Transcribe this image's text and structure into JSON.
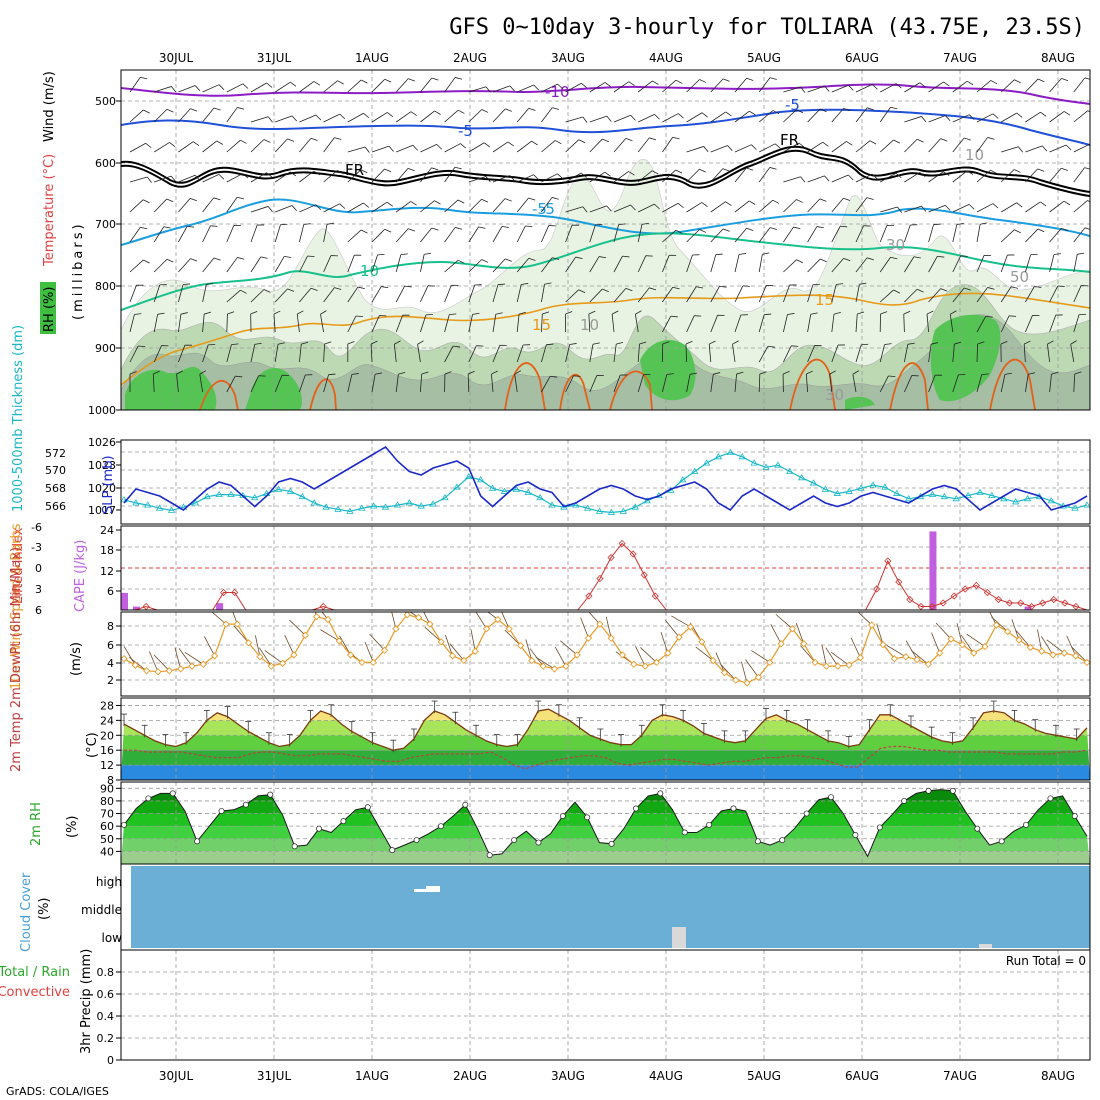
{
  "title": "GFS 0~10day 3-hourly for TOLIARA (43.75E, 23.5S)",
  "credit": "GrADS: COLA/IGES",
  "dates": [
    "30JUL",
    "31JUL",
    "1AUG",
    "2AUG",
    "3AUG",
    "4AUG",
    "5AUG",
    "6AUG",
    "7AUG",
    "8AUG"
  ],
  "run_total": "Run Total = 0",
  "colors": {
    "tempPurple": "#8c1cc4",
    "tempBlue": "#2050d8",
    "tempLightBlue": "#1a9ee0",
    "tempTeal": "#18c08c",
    "tempOrange": "#e69a18",
    "tempOrangeRed": "#e5601a",
    "freezing": "#000000",
    "rhLight": "#e8f4e4",
    "rhMid": "#b8d8b0",
    "rhDark": "#9bb89a",
    "rhGreen": "#50c850",
    "slp": "#1c2ac8",
    "thickness": "#18b8c8",
    "cape": "#c060e0",
    "li": "#d03030",
    "wind": "#e89a28",
    "cloud": "#6baed6",
    "dewpt": "#c04040"
  },
  "panels": {
    "upper": {
      "ylabel_parts": [
        "RH (%)",
        "Temperature (°C)",
        "Wind (m/s)",
        "(millibars)"
      ],
      "yticks": [
        "500",
        "600",
        "700",
        "800",
        "900",
        "1000"
      ],
      "contour_labels": [
        "-10",
        "-5",
        "-5",
        "FR",
        "FR",
        "-5",
        "-5",
        "10",
        "15",
        "15",
        "10",
        "30",
        "50",
        "30",
        "10"
      ]
    },
    "slp": {
      "left_label": "1000-500mb Thickness (dm)",
      "right_label": "SLP (mb)",
      "left_ticks": [
        "572",
        "570",
        "568",
        "566"
      ],
      "right_ticks": [
        "1026",
        "1023",
        "1020",
        "1017"
      ]
    },
    "cape": {
      "left_label": "Lifted Index",
      "right_label": "CAPE (J/kg)",
      "left_ticks": [
        "-6",
        "-3",
        "0",
        "3",
        "6"
      ],
      "right_ticks": [
        "24",
        "18",
        "12",
        "6"
      ]
    },
    "wind": {
      "label": "10m Wind Speed & Barbs",
      "unit": "(m/s)",
      "ticks": [
        "8",
        "6",
        "4",
        "2"
      ]
    },
    "temp": {
      "label": "2m Temp 2m DewPt (6hr Min/Max)",
      "unit": "(°C)",
      "ticks": [
        "28",
        "24",
        "20",
        "16",
        "12",
        "8"
      ]
    },
    "rh": {
      "label": "2m RH",
      "unit": "(%)",
      "ticks": [
        "90",
        "80",
        "70",
        "60",
        "50",
        "40"
      ]
    },
    "cloud": {
      "label": "Cloud Cover",
      "unit": "(%)",
      "levels": [
        "high",
        "middle",
        "low"
      ]
    },
    "precip": {
      "label": "3hr Precip (mm)",
      "legend_a": "Total / Rain",
      "legend_b": "Convective",
      "ticks": [
        "0.8",
        "0.6",
        "0.4",
        "0.2",
        "0"
      ]
    }
  },
  "chart_data": [
    {
      "type": "line",
      "name": "SLP (mb)",
      "ylim": [
        1014,
        1026
      ],
      "x_unit": "3-hourly steps from 29JUL 12Z",
      "values": [
        1017,
        1019,
        1018.5,
        1018,
        1017,
        1016,
        1017.5,
        1019,
        1020,
        1019.5,
        1018,
        1016.5,
        1018,
        1020,
        1020.5,
        1020,
        1019,
        1020,
        1021,
        1022,
        1023,
        1024,
        1025,
        1023,
        1021.5,
        1021,
        1022,
        1022.5,
        1023,
        1022,
        1018,
        1016.5,
        1018,
        1019.5,
        1020,
        1019,
        1018.5,
        1016.5,
        1017,
        1018,
        1019,
        1019.5,
        1019,
        1018,
        1017.5,
        1018,
        1019,
        1019.5,
        1020,
        1019,
        1017,
        1016,
        1018,
        1019,
        1018,
        1017,
        1016,
        1017,
        1018,
        1017,
        1016.5,
        1017,
        1018,
        1018.5,
        1018,
        1017.5,
        1017,
        1018,
        1019,
        1019.5,
        1019,
        1017.5,
        1016,
        1017,
        1018,
        1019,
        1018.5,
        1018,
        1016,
        1016.5,
        1017,
        1018
      ],
      "x_categories": [
        "29JUL12",
        "29JUL15",
        "29JUL18",
        "29JUL21",
        "30JUL00",
        "30JUL03",
        "30JUL06",
        "30JUL09",
        "30JUL12",
        "30JUL15",
        "30JUL18",
        "30JUL21",
        "31JUL00",
        "31JUL03",
        "31JUL06",
        "31JUL09",
        "31JUL12",
        "31JUL15",
        "31JUL18",
        "31JUL21",
        "1AUG00",
        "1AUG03",
        "1AUG06",
        "1AUG09",
        "1AUG12",
        "1AUG15",
        "1AUG18",
        "1AUG21",
        "2AUG00",
        "2AUG03",
        "2AUG06",
        "2AUG09",
        "2AUG12",
        "2AUG15",
        "2AUG18",
        "2AUG21",
        "3AUG00",
        "3AUG03",
        "3AUG06",
        "3AUG09",
        "3AUG12",
        "3AUG15",
        "3AUG18",
        "3AUG21",
        "4AUG00",
        "4AUG03",
        "4AUG06",
        "4AUG09",
        "4AUG12",
        "4AUG15",
        "4AUG18",
        "4AUG21",
        "5AUG00",
        "5AUG03",
        "5AUG06",
        "5AUG09",
        "5AUG12",
        "5AUG15",
        "5AUG18",
        "5AUG21",
        "6AUG00",
        "6AUG03",
        "6AUG06",
        "6AUG09",
        "6AUG12",
        "6AUG15",
        "6AUG18",
        "6AUG21",
        "7AUG00",
        "7AUG03",
        "7AUG06",
        "7AUG09",
        "7AUG12",
        "7AUG15",
        "7AUG18",
        "7AUG21",
        "8AUG00",
        "8AUG03",
        "8AUG06",
        "8AUG09",
        "8AUG12",
        "8AUG15"
      ]
    },
    {
      "type": "line",
      "name": "1000-500mb Thickness (dm)",
      "ylim": [
        565,
        573
      ],
      "values": [
        567.3,
        567,
        566.8,
        566.5,
        566.3,
        566.6,
        567,
        567.6,
        567.8,
        567.8,
        567.7,
        567.5,
        567.9,
        568.3,
        568.1,
        567.6,
        567,
        566.6,
        566.4,
        566.2,
        566.5,
        566.7,
        566.6,
        566.8,
        567,
        566.7,
        566.9,
        567.5,
        568.5,
        569.5,
        569.2,
        568.4,
        568.1,
        568.3,
        568,
        567.5,
        566.8,
        566.6,
        566.8,
        566.5,
        566.2,
        566.1,
        566.2,
        566.6,
        567.2,
        567.7,
        568.2,
        569.2,
        570,
        570.8,
        571.4,
        571.8,
        571.4,
        570.8,
        570.4,
        570.6,
        570,
        569.4,
        568.9,
        568.3,
        567.9,
        568.1,
        568.4,
        568.7,
        568.5,
        567.9,
        567.4,
        567.6,
        567.8,
        567.6,
        567.4,
        567.7,
        568,
        567.7,
        567.4,
        567.1,
        567.4,
        567.6,
        567.2,
        566.7,
        566.5,
        566.8
      ]
    },
    {
      "type": "bar",
      "name": "CAPE (J/kg)",
      "ylim": [
        0,
        24
      ],
      "values": [
        5,
        1,
        0,
        0,
        0,
        0,
        0,
        0,
        2,
        0,
        0,
        0,
        0,
        0,
        0,
        0,
        0,
        0,
        0,
        0,
        0,
        0,
        0,
        0,
        0,
        0,
        0,
        0,
        0,
        0,
        0,
        0,
        0,
        0,
        0,
        0,
        0,
        0,
        0,
        0,
        0,
        0,
        0,
        0,
        0,
        0,
        0,
        0,
        0,
        0,
        0,
        0,
        0,
        0,
        0,
        0,
        0,
        0,
        0,
        0,
        0,
        0,
        0,
        0,
        0,
        0,
        0,
        0,
        23,
        0,
        0,
        0,
        0,
        0,
        0,
        0,
        1,
        0,
        0,
        0,
        0,
        0
      ]
    },
    {
      "type": "line",
      "name": "Lifted Index",
      "ylim": [
        6,
        -6
      ],
      "values": [
        6,
        6,
        5.5,
        6,
        6,
        6,
        6,
        6,
        6,
        3.5,
        3.5,
        6,
        6,
        6,
        6,
        6,
        6,
        6,
        5.5,
        6,
        6,
        6,
        6,
        6,
        6,
        6,
        6,
        6,
        6,
        6,
        6,
        6,
        6,
        6,
        6,
        6,
        6,
        6,
        6,
        6,
        6,
        6,
        4,
        1.5,
        -1.5,
        -3.5,
        -2,
        1,
        4,
        6,
        6,
        6,
        6,
        6,
        6,
        6,
        6,
        6,
        6,
        6,
        6,
        6,
        6,
        6,
        6,
        6,
        6,
        6,
        3,
        -1,
        2,
        4.5,
        5.5,
        5.5,
        5,
        4,
        3,
        2.5,
        3.5,
        4.5,
        5,
        5,
        5.5,
        5,
        4.5,
        5,
        5.5,
        6
      ]
    },
    {
      "type": "line",
      "name": "10m Wind Speed (m/s)",
      "ylim": [
        0,
        9
      ],
      "values": [
        4,
        3.3,
        2.7,
        2.6,
        2.7,
        2.9,
        3.2,
        3.4,
        4.3,
        7.7,
        7.7,
        5.7,
        4.2,
        3.2,
        3.5,
        4.4,
        6.5,
        8.5,
        8.2,
        5.9,
        4.4,
        3.6,
        3.6,
        4.9,
        7.2,
        8.7,
        8.4,
        7.7,
        5.8,
        4.3,
        3.8,
        4.8,
        7.2,
        8.2,
        7.2,
        5.4,
        3.8,
        3.2,
        2.9,
        3.2,
        4.4,
        6.2,
        7.7,
        6.2,
        4.4,
        3.4,
        3.2,
        3.6,
        4.6,
        6.3,
        7.4,
        5.8,
        3.8,
        2.5,
        1.7,
        1.4,
        2,
        3.6,
        5.6,
        7.2,
        5.6,
        3.6,
        3.2,
        3.2,
        3.3,
        4.1,
        7.6,
        5.5,
        4,
        4.2,
        3.9,
        3.4,
        4.6,
        6.1,
        5.5,
        4.6,
        5.3,
        7.6,
        6.9,
        6,
        5.2,
        4.8,
        4.4,
        4.6,
        4.3,
        3.6
      ]
    },
    {
      "type": "area",
      "name": "2m Temp (°C)",
      "ylim": [
        8,
        30
      ],
      "values": [
        23,
        21.5,
        20,
        18.5,
        17.5,
        17,
        18,
        20.5,
        24,
        26,
        25,
        23,
        21,
        19.5,
        18,
        17,
        17.5,
        20,
        24,
        26.5,
        25.5,
        23,
        21,
        19.5,
        18,
        17,
        16,
        16.5,
        19,
        24,
        26.5,
        25.5,
        23.5,
        21.5,
        20,
        18.5,
        17.5,
        17,
        17.5,
        21.5,
        26.5,
        27,
        25.5,
        24,
        22,
        20,
        19,
        18,
        17.5,
        17.5,
        20,
        24,
        25.5,
        25,
        24,
        22.5,
        20.5,
        19.5,
        18.5,
        18,
        18.5,
        21.5,
        24.5,
        25.5,
        24,
        23,
        21.5,
        20,
        18.5,
        18,
        17,
        17.5,
        21.5,
        25.5,
        25.5,
        24,
        22.5,
        21,
        19.5,
        18.5,
        18,
        18.5,
        22,
        26,
        26.5,
        26,
        24,
        23,
        21.5,
        20.5,
        20,
        19.5,
        19,
        22
      ]
    },
    {
      "type": "line",
      "name": "2m DewPt (°C)",
      "ylim": [
        8,
        30
      ],
      "values": [
        16,
        16,
        15.5,
        15.5,
        15.5,
        15.5,
        15,
        14.5,
        14,
        14,
        14,
        15,
        15.5,
        15.5,
        15,
        14.5,
        14.5,
        15,
        15,
        15,
        14.5,
        14,
        13.5,
        13,
        13,
        14,
        14.5,
        15,
        15,
        15,
        15,
        15,
        15.5,
        14,
        12,
        11,
        12,
        13,
        13.5,
        14,
        14.5,
        14.5,
        14,
        12.5,
        12,
        12.5,
        13,
        13.5,
        13.5,
        13,
        12.5,
        12,
        12.5,
        13,
        13,
        13.5,
        14,
        14,
        14.5,
        14.5,
        14,
        13.5,
        12.5,
        11.5,
        11.5,
        14,
        16.5,
        17,
        17,
        16.5,
        16,
        16,
        15.5,
        15.5,
        15.5,
        15.5,
        15.5,
        15,
        15,
        15,
        15,
        15,
        15.5,
        15.5,
        16
      ]
    },
    {
      "type": "area",
      "name": "2m RH (%)",
      "ylim": [
        30,
        95
      ],
      "values": [
        61,
        74,
        82,
        86,
        86,
        72,
        48,
        60,
        72,
        73,
        77,
        84,
        85,
        69,
        44,
        45,
        58,
        55,
        64,
        73,
        75,
        58,
        41,
        45,
        49,
        54,
        60,
        68,
        77,
        58,
        37,
        38,
        49,
        56,
        47,
        54,
        68,
        79,
        67,
        47,
        46,
        58,
        74,
        84,
        86,
        73,
        55,
        55,
        61,
        72,
        74,
        72,
        48,
        45,
        49,
        58,
        70,
        81,
        83,
        70,
        53,
        36,
        59,
        69,
        80,
        86,
        88,
        89,
        88,
        72,
        58,
        45,
        48,
        56,
        61,
        73,
        82,
        84,
        68,
        52
      ]
    },
    {
      "type": "bar",
      "name": "Cloud Cover (%)",
      "levels": [
        "low",
        "middle",
        "high"
      ],
      "values": {
        "low": 95,
        "middle": 95,
        "high": 95
      }
    },
    {
      "type": "bar",
      "name": "3hr Precip (mm)",
      "ylim": [
        0,
        1
      ],
      "values": []
    }
  ]
}
